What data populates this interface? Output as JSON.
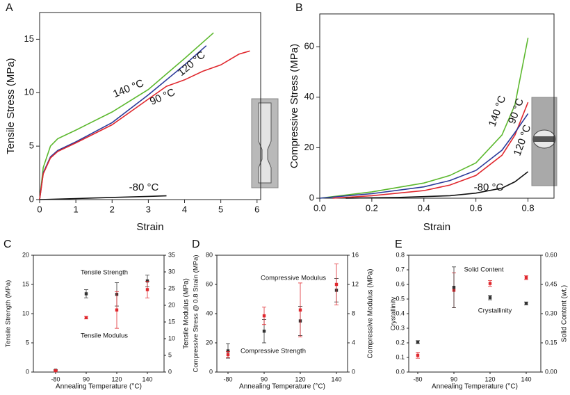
{
  "chart_data": [
    {
      "type": "line",
      "panel": "A",
      "x_label": "Strain",
      "y_label": "Tensile Stress (MPa)",
      "xlim": [
        0,
        6.1
      ],
      "xticks": [
        0,
        1,
        2,
        3,
        4,
        5,
        6
      ],
      "ylim": [
        0,
        17.5
      ],
      "yticks": [
        0,
        5,
        10,
        15
      ],
      "series": [
        {
          "name": "140 °C",
          "color": "#5cb82e",
          "x": [
            0,
            0.1,
            0.3,
            0.5,
            1,
            2,
            3,
            4,
            4.8
          ],
          "values": [
            0,
            3,
            5,
            5.7,
            6.5,
            8.2,
            10.3,
            13.2,
            15.6
          ]
        },
        {
          "name": "120 °C",
          "color": "#2b3a9a",
          "x": [
            0,
            0.1,
            0.3,
            0.5,
            1,
            2,
            3,
            4,
            4.6
          ],
          "values": [
            0,
            2.5,
            4,
            4.6,
            5.4,
            7.2,
            9.8,
            12.6,
            14.4
          ]
        },
        {
          "name": "90 °C",
          "color": "#e0282e",
          "x": [
            0,
            0.1,
            0.3,
            0.5,
            1,
            2,
            3,
            3.5,
            4,
            4.5,
            5,
            5.5,
            5.8
          ],
          "values": [
            0,
            2.4,
            3.9,
            4.5,
            5.3,
            7,
            9.4,
            10.6,
            11.2,
            12,
            12.6,
            13.6,
            13.9
          ]
        },
        {
          "name": "-80 °C",
          "color": "#111111",
          "x": [
            0,
            1,
            2,
            3,
            3.5
          ],
          "values": [
            0,
            0.1,
            0.2,
            0.3,
            0.35
          ]
        }
      ]
    },
    {
      "type": "line",
      "panel": "B",
      "x_label": "Strain",
      "y_label": "Compressive Stress (MPa)",
      "xlim": [
        0,
        0.9
      ],
      "xticks": [
        {
          "value": 0,
          "label": "0.0"
        },
        0.2,
        0.4,
        0.6,
        0.8
      ],
      "ylim": [
        0,
        73
      ],
      "yticks": [
        0,
        20,
        40,
        60
      ],
      "series": [
        {
          "name": "140 °C",
          "color": "#5cb82e",
          "x": [
            0,
            0.2,
            0.4,
            0.5,
            0.6,
            0.7,
            0.75,
            0.8
          ],
          "values": [
            0,
            2.5,
            6,
            9,
            14,
            25,
            37,
            63.5
          ]
        },
        {
          "name": "90 °C",
          "color": "#e0282e",
          "x": [
            0.05,
            0.2,
            0.4,
            0.5,
            0.6,
            0.7,
            0.75,
            0.8
          ],
          "values": [
            0,
            1,
            3,
            5.2,
            9,
            17,
            25,
            38
          ]
        },
        {
          "name": "120 °C",
          "color": "#2b3a9a",
          "x": [
            0,
            0.2,
            0.4,
            0.5,
            0.6,
            0.7,
            0.75,
            0.8
          ],
          "values": [
            0,
            1.8,
            4.5,
            7,
            11,
            19,
            26,
            33.5
          ]
        },
        {
          "name": "-80 °C",
          "color": "#111111",
          "x": [
            0.1,
            0.3,
            0.5,
            0.6,
            0.7,
            0.75,
            0.8
          ],
          "values": [
            0,
            0.3,
            1,
            2,
            4,
            6.5,
            10.5
          ]
        }
      ]
    },
    {
      "type": "scatter",
      "panel": "C",
      "x_label": "Annealing Temperature (°C)",
      "y_label": "Tensile Strength (MPa)",
      "y2_label": "Tensile Modulus (MPa)",
      "categories": [
        "-80",
        "90",
        "120",
        "140"
      ],
      "ylim": [
        0,
        20
      ],
      "yticks": [
        0,
        5,
        10,
        15,
        20
      ],
      "y2lim": [
        0,
        35
      ],
      "y2ticks": [
        0,
        5,
        10,
        15,
        20,
        25,
        30,
        35
      ],
      "series": [
        {
          "name": "Tensile Strength",
          "color": "#333333",
          "values": [
            0.3,
            13.4,
            13.3,
            15.6
          ],
          "errors": [
            0.1,
            0.7,
            2,
            1
          ]
        },
        {
          "name": "Tensile Modulus",
          "color": "#e0282e",
          "axis": "y2",
          "values": [
            0.4,
            16.3,
            18.6,
            24.7
          ],
          "errors": [
            0.1,
            0.4,
            5.5,
            2.5
          ]
        }
      ]
    },
    {
      "type": "scatter",
      "panel": "D",
      "x_label": "Annealing Temperature (°C)",
      "y_label": "Compressive Stress @ 0.8 Strain (MPa)",
      "y2_label": "Compressive Modulus (MPa)",
      "categories": [
        "-80",
        "90",
        "120",
        "140"
      ],
      "ylim": [
        0,
        80
      ],
      "yticks": [
        0,
        20,
        40,
        60,
        80
      ],
      "y2lim": [
        0,
        16
      ],
      "y2ticks": [
        0,
        4,
        8,
        12,
        16
      ],
      "series": [
        {
          "name": "Compressive Strength",
          "color": "#333333",
          "values": [
            14.5,
            28,
            35,
            56
          ],
          "errors": [
            5,
            8,
            10,
            8
          ]
        },
        {
          "name": "Compressive Modulus",
          "color": "#e0282e",
          "axis": "y2",
          "values": [
            2.4,
            7.7,
            8.5,
            12
          ],
          "errors": [
            0.4,
            1.2,
            3.7,
            2.8
          ]
        }
      ]
    },
    {
      "type": "scatter",
      "panel": "E",
      "x_label": "Annealing Temperature (°C)",
      "y_label": "Crystallinity",
      "y2_label": "Solid Content (wt.)",
      "categories": [
        "-80",
        "90",
        "120",
        "140"
      ],
      "ylim": [
        0,
        0.8
      ],
      "yticks": [
        {
          "value": 0,
          "label": "0.0"
        },
        0.1,
        0.2,
        0.3,
        0.4,
        0.5,
        0.6,
        0.7,
        0.8
      ],
      "y2lim": [
        0,
        0.6
      ],
      "y2ticks": [
        {
          "value": 0,
          "label": "0.00"
        },
        0.15,
        {
          "value": 0.3,
          "label": "0.30"
        },
        0.45,
        {
          "value": 0.6,
          "label": "0.60"
        }
      ],
      "series": [
        {
          "name": "Solid Content",
          "color": "#e0282e",
          "axis": "y2",
          "values": [
            0.086,
            0.42,
            0.455,
            0.485
          ],
          "errors": [
            0.015,
            0.09,
            0.015,
            0.01
          ]
        },
        {
          "name": "Crystallinity",
          "color": "#333333",
          "values": [
            0.205,
            0.58,
            0.51,
            0.47
          ],
          "errors": [
            0.01,
            0.14,
            0.015,
            0.01
          ]
        }
      ]
    }
  ]
}
